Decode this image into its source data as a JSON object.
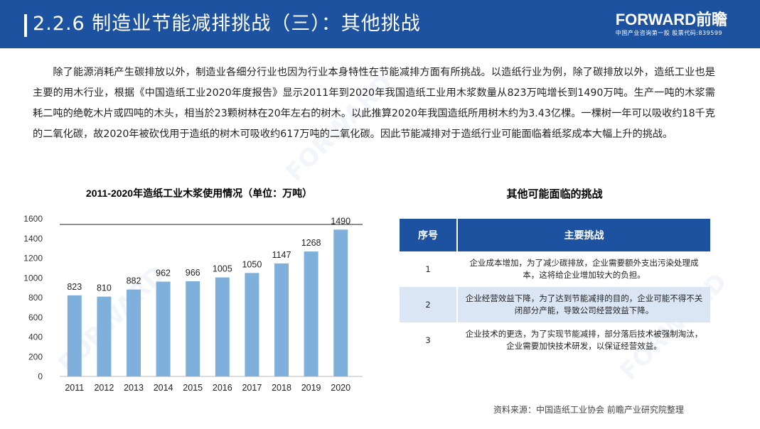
{
  "header": {
    "title": "2.2.6 制造业节能减排挑战（三）：其他挑战",
    "logo_brand": "FORWARD前瞻",
    "logo_sub": "中国产业咨询第一股 股票代码:839599"
  },
  "paragraph": "除了能源消耗产生碳排放以外，制造业各细分行业也因为行业本身特性在节能减排方面有所挑战。以造纸行业为例，除了碳排放以外，造纸工业也是主要的用木行业，根据《中国造纸工业2020年度报告》显示2011年到2020年我国造纸工业用木浆数量从823万吨增长到1490万吨。生产一吨的木浆需耗二吨的绝乾木片或四吨的木头，相当於23颗树林在20年左右的树木。以此推算2020年我国造纸所用树木约为3.43亿棵。一棵树一年可以吸收约18千克的二氧化碳，故2020年被砍伐用于造纸的树木可吸收约617万吨的二氧化碳。因此节能减排对于造纸行业可能面临着纸浆成本大幅上升的挑战。",
  "chart_data": {
    "type": "bar",
    "title": "2011-2020年造纸工业木浆使用情况（单位：万吨）",
    "categories": [
      "2011",
      "2012",
      "2013",
      "2014",
      "2015",
      "2016",
      "2017",
      "2018",
      "2019",
      "2020"
    ],
    "values": [
      823,
      810,
      882,
      962,
      966,
      1005,
      1050,
      1147,
      1268,
      1490
    ],
    "yticks": [
      "0",
      "200",
      "400",
      "600",
      "800",
      "1000",
      "1200",
      "1400",
      "1600"
    ],
    "ylim": [
      0,
      1600
    ],
    "grid": false,
    "bar_color": "#7fb0dc"
  },
  "table": {
    "title": "其他可能面临的挑战",
    "headers": [
      "序号",
      "主要挑战"
    ],
    "rows": [
      {
        "num": "1",
        "text": "企业成本增加，为了减少碳排放，企业需要额外支出污染处理成本，这将给企业增加较大的负担。"
      },
      {
        "num": "2",
        "text": "企业经营效益下降，为了达到节能减排的目的，企业可能不得不关闭部分产能，导致公司经营效益下降。"
      },
      {
        "num": "3",
        "text": "企业技术的更迭，为了实现节能减排，部分落后技术被强制淘汰，企业需要加快技术研发，以保证经营效益。"
      }
    ]
  },
  "source": "资料来源：中国造纸工业协会 前瞻产业研究院整理",
  "colors": {
    "header_bg": "#1d52a1",
    "bar": "#7fb0dc",
    "table_alt": "#dbe6f5"
  }
}
